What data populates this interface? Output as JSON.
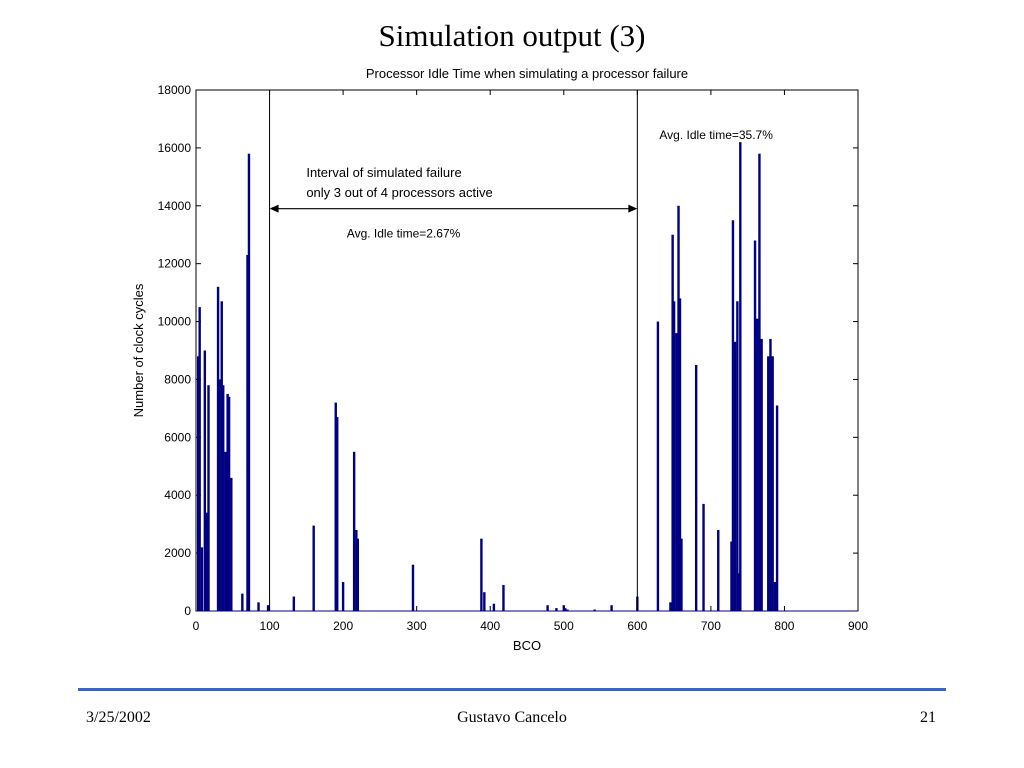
{
  "slide": {
    "title": "Simulation output (3)",
    "footer_date": "3/25/2002",
    "footer_author": "Gustavo Cancelo",
    "footer_page": "21"
  },
  "colors": {
    "bar": "#000080",
    "rule": "#3366cc"
  },
  "chart_data": {
    "type": "bar",
    "title": "Processor Idle Time when simulating a processor failure",
    "xlabel": "BCO",
    "ylabel": "Number of clock cycles",
    "xlim": [
      0,
      900
    ],
    "ylim": [
      0,
      18000
    ],
    "xticks": [
      0,
      100,
      200,
      300,
      400,
      500,
      600,
      700,
      800,
      900
    ],
    "yticks": [
      0,
      2000,
      4000,
      6000,
      8000,
      10000,
      12000,
      14000,
      16000,
      18000
    ],
    "grid": false,
    "vlines": [
      100,
      600
    ],
    "annotations": [
      {
        "text": "Interval of simulated failure",
        "x": 150,
        "y": 15000
      },
      {
        "text": "only 3 out of 4 processors active",
        "x": 150,
        "y": 14300
      },
      {
        "text": "Avg. Idle time=2.67%",
        "x": 205,
        "y": 12900
      },
      {
        "text": "Avg. Idle time=35.7%",
        "x": 630,
        "y": 16300
      }
    ],
    "arrow": {
      "from": 100,
      "to": 600,
      "y": 13900
    },
    "x": [
      3,
      5,
      8,
      12,
      15,
      17,
      20,
      30,
      32,
      35,
      37,
      40,
      43,
      45,
      48,
      50,
      53,
      63,
      70,
      72,
      75,
      85,
      98,
      133,
      160,
      162,
      190,
      192,
      195,
      200,
      215,
      218,
      220,
      222,
      295,
      297,
      388,
      392,
      397,
      405,
      418,
      478,
      490,
      500,
      502,
      505,
      542,
      565,
      567,
      600,
      602,
      628,
      635,
      638,
      645,
      648,
      650,
      653,
      656,
      658,
      660,
      663,
      666,
      670,
      680,
      685,
      690,
      698,
      700,
      710,
      728,
      730,
      733,
      736,
      738,
      740,
      743,
      745,
      760,
      763,
      766,
      769,
      772,
      775,
      778,
      781,
      784,
      787,
      790,
      792,
      795,
      799
    ],
    "values": [
      8800,
      10500,
      2200,
      9000,
      3400,
      7800,
      0,
      11200,
      8000,
      10700,
      7800,
      5500,
      7500,
      7400,
      4600,
      0,
      0,
      600,
      12300,
      15800,
      0,
      300,
      200,
      500,
      2950,
      0,
      7200,
      6700,
      0,
      1000,
      5500,
      2800,
      2500,
      0,
      1600,
      0,
      2500,
      650,
      0,
      250,
      900,
      200,
      100,
      200,
      100,
      50,
      50,
      200,
      0,
      500,
      0,
      10000,
      0,
      0,
      300,
      13000,
      10700,
      9600,
      14000,
      10800,
      2500,
      0,
      0,
      0,
      8500,
      0,
      3700,
      0,
      0,
      2800,
      2400,
      13500,
      9300,
      10700,
      1300,
      16200,
      0,
      0,
      12800,
      10100,
      15800,
      9400,
      0,
      0,
      8800,
      9400,
      8800,
      1000,
      7100,
      0,
      0,
      0
    ]
  }
}
